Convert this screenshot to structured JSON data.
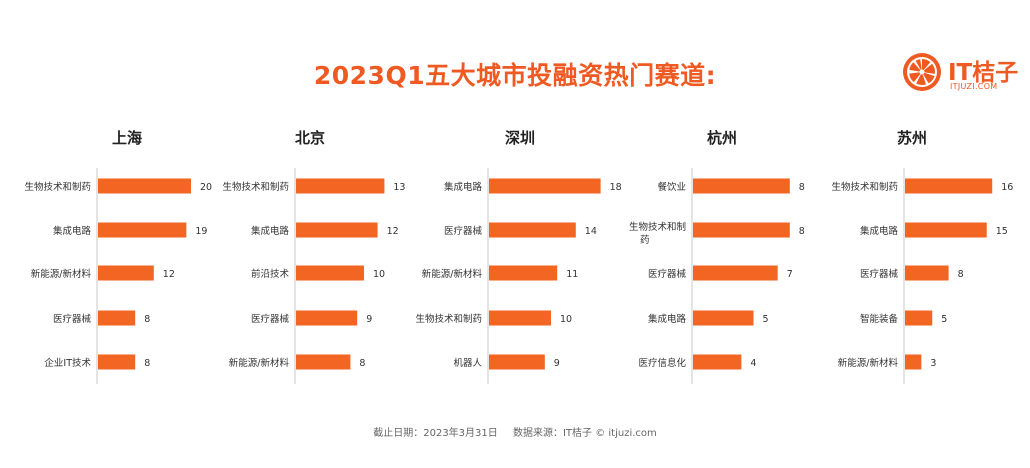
{
  "title": "2023Q1五大城市投融资热门赛道:",
  "logo": {
    "brand": "IT桔子",
    "domain": "ITJUZI.COM"
  },
  "footer": {
    "cutoff": "截止日期：2023年3月31日",
    "source": "数据来源：IT桔子 © itjuzi.com"
  },
  "colors": {
    "bar": "#f26522",
    "title": "#ef5a23",
    "axis": "#c8c8c8",
    "label": "#333333"
  },
  "chart_data": [
    {
      "type": "bar",
      "orientation": "horizontal",
      "title": "上海",
      "categories": [
        "生物技术和制药",
        "集成电路",
        "新能源/新材料",
        "医疗器械",
        "企业IT技术"
      ],
      "values": [
        20,
        19,
        12,
        8,
        8
      ]
    },
    {
      "type": "bar",
      "orientation": "horizontal",
      "title": "北京",
      "categories": [
        "生物技术和制药",
        "集成电路",
        "前沿技术",
        "医疗器械",
        "新能源/新材料"
      ],
      "values": [
        13,
        12,
        10,
        9,
        8
      ]
    },
    {
      "type": "bar",
      "orientation": "horizontal",
      "title": "深圳",
      "categories": [
        "集成电路",
        "医疗器械",
        "新能源/新材料",
        "生物技术和制药",
        "机器人"
      ],
      "values": [
        18,
        14,
        11,
        10,
        9
      ]
    },
    {
      "type": "bar",
      "orientation": "horizontal",
      "title": "杭州",
      "categories": [
        "餐饮业",
        "生物技术和制药",
        "医疗器械",
        "集成电路",
        "医疗信息化"
      ],
      "values": [
        8,
        8,
        7,
        5,
        4
      ]
    },
    {
      "type": "bar",
      "orientation": "horizontal",
      "title": "苏州",
      "categories": [
        "生物技术和制药",
        "集成电路",
        "医疗器械",
        "智能装备",
        "新能源/新材料"
      ],
      "values": [
        16,
        15,
        8,
        5,
        3
      ]
    }
  ]
}
